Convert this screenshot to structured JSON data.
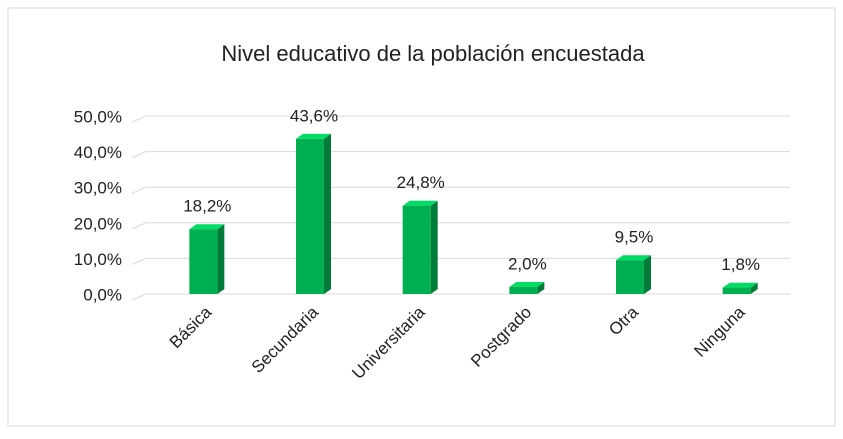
{
  "chart_data": {
    "type": "bar3d",
    "title": "Nivel educativo de la población encuestada",
    "categories": [
      "Básica",
      "Secundaria",
      "Universitaria",
      "Postgrado",
      "Otra",
      "Ninguna"
    ],
    "values": [
      18.2,
      43.6,
      24.8,
      2.0,
      9.5,
      1.8
    ],
    "value_labels": [
      "18,2%",
      "43,6%",
      "24,8%",
      "2,0%",
      "9,5%",
      "1,8%"
    ],
    "color": "#00b050",
    "ylim": [
      0,
      50
    ],
    "yticks": [
      {
        "value": 0,
        "label": "0,0%"
      },
      {
        "value": 10,
        "label": "10,0%"
      },
      {
        "value": 20,
        "label": "20,0%"
      },
      {
        "value": 30,
        "label": "30,0%"
      },
      {
        "value": 40,
        "label": "40,0%"
      },
      {
        "value": 50,
        "label": "50,0%"
      }
    ],
    "grid": true
  }
}
